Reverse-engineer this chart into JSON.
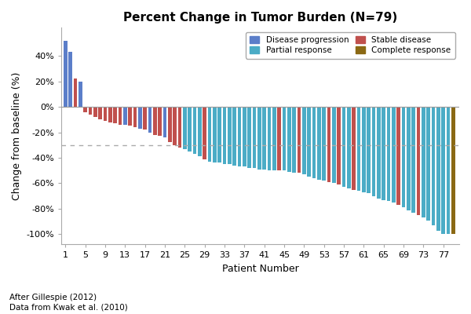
{
  "title": "Percent Change in Tumor Burden (N=79)",
  "xlabel": "Patient Number",
  "ylabel": "Change from baseline (%)",
  "footnote1": "After Gillespie (2012)",
  "footnote2": "Data from Kwak et al. (2010)",
  "dashed_line_y": -30,
  "yticks": [
    -100,
    -80,
    -60,
    -40,
    -20,
    0,
    20,
    40
  ],
  "ytick_labels": [
    "-100%",
    "-80%",
    "-60%",
    "-40%",
    "-20%",
    "0%",
    "20%",
    "40%"
  ],
  "ylim": [
    -108,
    62
  ],
  "colors": {
    "Disease progression": "#5B7EC9",
    "Stable disease": "#C0504D",
    "Partial response": "#4BACC6",
    "Complete response": "#8B6914"
  },
  "xtick_positions": [
    1,
    5,
    9,
    13,
    17,
    21,
    25,
    29,
    33,
    37,
    41,
    45,
    49,
    53,
    57,
    61,
    65,
    69,
    73,
    77
  ],
  "bar_data": [
    {
      "patient": 1,
      "value": 52,
      "category": "Disease progression"
    },
    {
      "patient": 2,
      "value": 43,
      "category": "Disease progression"
    },
    {
      "patient": 3,
      "value": 22,
      "category": "Stable disease"
    },
    {
      "patient": 4,
      "value": 20,
      "category": "Disease progression"
    },
    {
      "patient": 5,
      "value": -4,
      "category": "Stable disease"
    },
    {
      "patient": 6,
      "value": -6,
      "category": "Stable disease"
    },
    {
      "patient": 7,
      "value": -8,
      "category": "Stable disease"
    },
    {
      "patient": 8,
      "value": -10,
      "category": "Stable disease"
    },
    {
      "patient": 9,
      "value": -11,
      "category": "Stable disease"
    },
    {
      "patient": 10,
      "value": -12,
      "category": "Stable disease"
    },
    {
      "patient": 11,
      "value": -13,
      "category": "Stable disease"
    },
    {
      "patient": 12,
      "value": -14,
      "category": "Stable disease"
    },
    {
      "patient": 13,
      "value": -14,
      "category": "Disease progression"
    },
    {
      "patient": 14,
      "value": -15,
      "category": "Stable disease"
    },
    {
      "patient": 15,
      "value": -16,
      "category": "Stable disease"
    },
    {
      "patient": 16,
      "value": -17,
      "category": "Disease progression"
    },
    {
      "patient": 17,
      "value": -18,
      "category": "Stable disease"
    },
    {
      "patient": 18,
      "value": -20,
      "category": "Disease progression"
    },
    {
      "patient": 19,
      "value": -22,
      "category": "Stable disease"
    },
    {
      "patient": 20,
      "value": -23,
      "category": "Stable disease"
    },
    {
      "patient": 21,
      "value": -24,
      "category": "Disease progression"
    },
    {
      "patient": 22,
      "value": -28,
      "category": "Stable disease"
    },
    {
      "patient": 23,
      "value": -30,
      "category": "Stable disease"
    },
    {
      "patient": 24,
      "value": -32,
      "category": "Stable disease"
    },
    {
      "patient": 25,
      "value": -33,
      "category": "Partial response"
    },
    {
      "patient": 26,
      "value": -35,
      "category": "Partial response"
    },
    {
      "patient": 27,
      "value": -37,
      "category": "Partial response"
    },
    {
      "patient": 28,
      "value": -39,
      "category": "Partial response"
    },
    {
      "patient": 29,
      "value": -41,
      "category": "Stable disease"
    },
    {
      "patient": 30,
      "value": -43,
      "category": "Partial response"
    },
    {
      "patient": 31,
      "value": -44,
      "category": "Partial response"
    },
    {
      "patient": 32,
      "value": -44,
      "category": "Partial response"
    },
    {
      "patient": 33,
      "value": -45,
      "category": "Partial response"
    },
    {
      "patient": 34,
      "value": -45,
      "category": "Partial response"
    },
    {
      "patient": 35,
      "value": -46,
      "category": "Partial response"
    },
    {
      "patient": 36,
      "value": -47,
      "category": "Partial response"
    },
    {
      "patient": 37,
      "value": -47,
      "category": "Partial response"
    },
    {
      "patient": 38,
      "value": -48,
      "category": "Partial response"
    },
    {
      "patient": 39,
      "value": -48,
      "category": "Partial response"
    },
    {
      "patient": 40,
      "value": -49,
      "category": "Partial response"
    },
    {
      "patient": 41,
      "value": -49,
      "category": "Partial response"
    },
    {
      "patient": 42,
      "value": -50,
      "category": "Partial response"
    },
    {
      "patient": 43,
      "value": -50,
      "category": "Partial response"
    },
    {
      "patient": 44,
      "value": -50,
      "category": "Stable disease"
    },
    {
      "patient": 45,
      "value": -50,
      "category": "Partial response"
    },
    {
      "patient": 46,
      "value": -51,
      "category": "Partial response"
    },
    {
      "patient": 47,
      "value": -52,
      "category": "Partial response"
    },
    {
      "patient": 48,
      "value": -52,
      "category": "Stable disease"
    },
    {
      "patient": 49,
      "value": -53,
      "category": "Partial response"
    },
    {
      "patient": 50,
      "value": -55,
      "category": "Partial response"
    },
    {
      "patient": 51,
      "value": -56,
      "category": "Partial response"
    },
    {
      "patient": 52,
      "value": -57,
      "category": "Partial response"
    },
    {
      "patient": 53,
      "value": -58,
      "category": "Partial response"
    },
    {
      "patient": 54,
      "value": -59,
      "category": "Stable disease"
    },
    {
      "patient": 55,
      "value": -60,
      "category": "Partial response"
    },
    {
      "patient": 56,
      "value": -61,
      "category": "Stable disease"
    },
    {
      "patient": 57,
      "value": -63,
      "category": "Partial response"
    },
    {
      "patient": 58,
      "value": -64,
      "category": "Partial response"
    },
    {
      "patient": 59,
      "value": -65,
      "category": "Stable disease"
    },
    {
      "patient": 60,
      "value": -66,
      "category": "Partial response"
    },
    {
      "patient": 61,
      "value": -67,
      "category": "Partial response"
    },
    {
      "patient": 62,
      "value": -68,
      "category": "Partial response"
    },
    {
      "patient": 63,
      "value": -70,
      "category": "Partial response"
    },
    {
      "patient": 64,
      "value": -72,
      "category": "Partial response"
    },
    {
      "patient": 65,
      "value": -73,
      "category": "Partial response"
    },
    {
      "patient": 66,
      "value": -74,
      "category": "Partial response"
    },
    {
      "patient": 67,
      "value": -75,
      "category": "Partial response"
    },
    {
      "patient": 68,
      "value": -77,
      "category": "Stable disease"
    },
    {
      "patient": 69,
      "value": -79,
      "category": "Partial response"
    },
    {
      "patient": 70,
      "value": -81,
      "category": "Partial response"
    },
    {
      "patient": 71,
      "value": -83,
      "category": "Partial response"
    },
    {
      "patient": 72,
      "value": -85,
      "category": "Stable disease"
    },
    {
      "patient": 73,
      "value": -87,
      "category": "Partial response"
    },
    {
      "patient": 74,
      "value": -89,
      "category": "Partial response"
    },
    {
      "patient": 75,
      "value": -93,
      "category": "Partial response"
    },
    {
      "patient": 76,
      "value": -97,
      "category": "Partial response"
    },
    {
      "patient": 77,
      "value": -100,
      "category": "Partial response"
    },
    {
      "patient": 78,
      "value": -100,
      "category": "Partial response"
    },
    {
      "patient": 79,
      "value": -100,
      "category": "Complete response"
    }
  ]
}
